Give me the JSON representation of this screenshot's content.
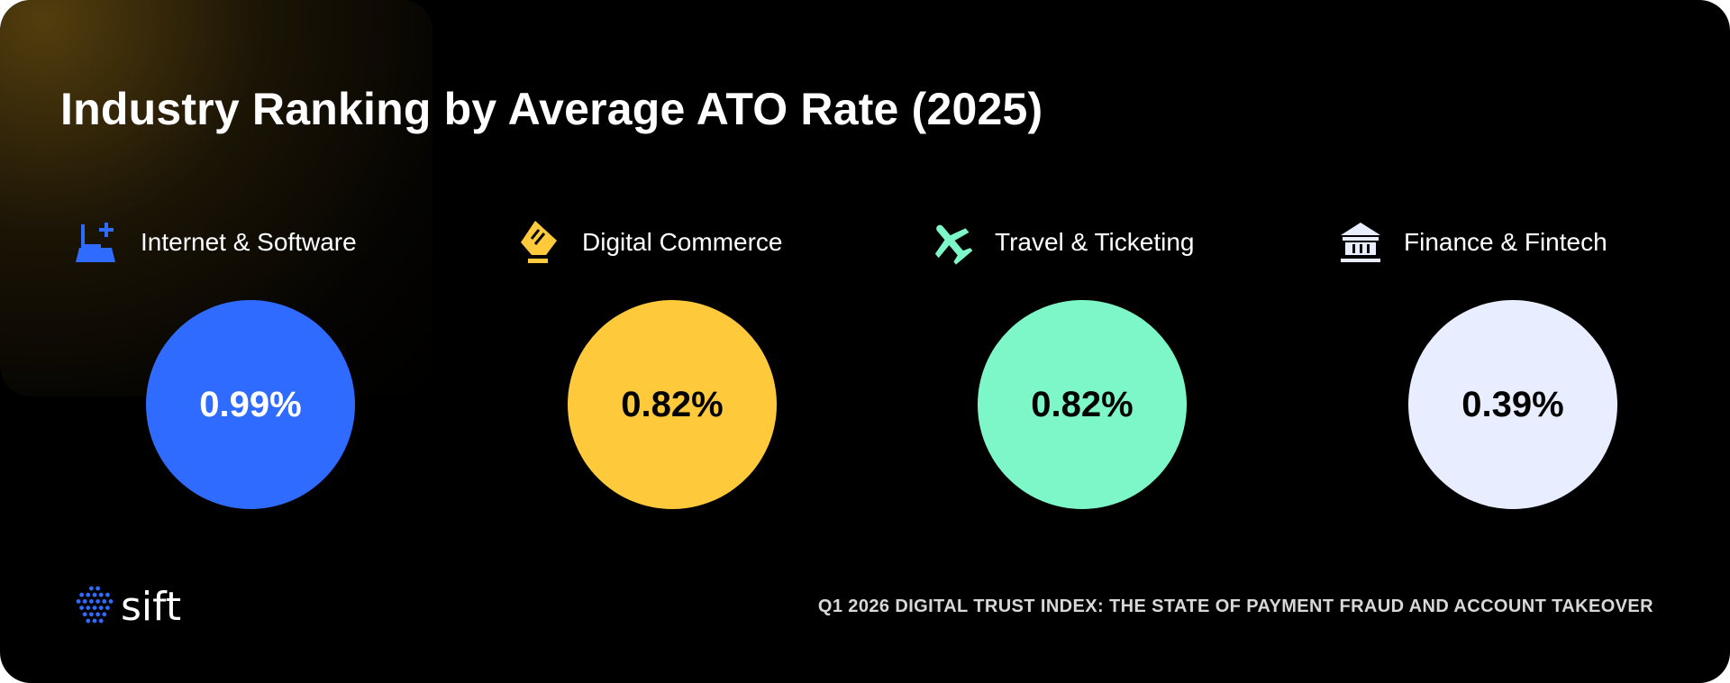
{
  "title": "Industry Ranking by Average ATO Rate (2025)",
  "industries": [
    {
      "label": "Internet & Software",
      "value": "0.99%",
      "color": "#2f6bff",
      "text_color": "#ffffff",
      "icon": "laptop-plus-icon"
    },
    {
      "label": "Digital Commerce",
      "value": "0.82%",
      "color": "#ffc93c",
      "text_color": "#000000",
      "icon": "credit-card-terminal-icon"
    },
    {
      "label": "Travel & Ticketing",
      "value": "0.82%",
      "color": "#7ef7c8",
      "text_color": "#000000",
      "icon": "airplane-icon"
    },
    {
      "label": "Finance & Fintech",
      "value": "0.39%",
      "color": "#e8eeff",
      "text_color": "#000000",
      "icon": "bank-icon"
    }
  ],
  "logo": {
    "text": "sift",
    "color": "#2f6bff"
  },
  "footer": "Q1 2026 DIGITAL TRUST INDEX: THE STATE OF PAYMENT FRAUD AND ACCOUNT TAKEOVER"
}
